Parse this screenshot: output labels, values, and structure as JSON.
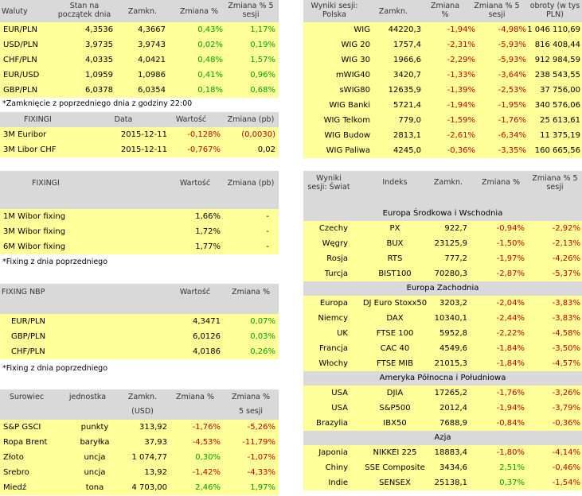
{
  "currency": {
    "headers": [
      "Waluty",
      "Stan na początek dnia",
      "Zamkn.",
      "Zmiana %",
      "Zmiana % 5 sesji"
    ],
    "rows": [
      [
        "EUR/PLN",
        "4,3536",
        "4,3667",
        "0,43%",
        "1,17%"
      ],
      [
        "USD/PLN",
        "3,9735",
        "3,9743",
        "0,02%",
        "0,19%"
      ],
      [
        "CHF/PLN",
        "4,0335",
        "4,0421",
        "0,48%",
        "1,57%"
      ],
      [
        "EUR/USD",
        "1,0959",
        "1,0986",
        "0,41%",
        "0,96%"
      ],
      [
        "GBP/PLN",
        "6,0378",
        "6,0354",
        "0,18%",
        "0,68%"
      ]
    ],
    "note": "*Zamknięcie z poprzedniego dnia z godziny 22:00"
  },
  "fixing1": {
    "headers": [
      "FIXINGI",
      "Data",
      "Wartość",
      "Zmiana (pb)"
    ],
    "rows": [
      [
        "3M Euribor",
        "2015-12-11",
        "-0,128%",
        "(0,0030)"
      ],
      [
        "3M Libor CHF",
        "2015-12-11",
        "-0,767%",
        "0,02"
      ]
    ]
  },
  "fixing2": {
    "headers": [
      "FIXINGI",
      "Wartość",
      "Zmiana (pb)"
    ],
    "rows": [
      [
        "1M Wibor fixing",
        "1,66%",
        "-"
      ],
      [
        "3M Wibor fixing",
        "1,72%",
        "-"
      ],
      [
        "6M Wibor fixing",
        "1,77%",
        "-"
      ]
    ],
    "note": "*Fixing z dnia poprzedniego"
  },
  "nbp": {
    "headers": [
      "FIXING NBP",
      "Wartość",
      "Zmiana %"
    ],
    "rows": [
      [
        "EUR/PLN",
        "4,3471",
        "0,07%"
      ],
      [
        "GBP/PLN",
        "6,0126",
        "0,03%"
      ],
      [
        "CHF/PLN",
        "4,0186",
        "0,26%"
      ]
    ],
    "note": "*Fixing z dnia poprzedniego"
  },
  "commodities": {
    "headers": [
      "Surowiec",
      "jednostka",
      "Zamkn.",
      "Zmiana %",
      "Zmiana %"
    ],
    "subheaders": [
      "(USD)",
      "5 sesji"
    ],
    "rows": [
      [
        "S&P GSCI",
        "punkty",
        "313,92",
        "-1,76%",
        "-5,26%"
      ],
      [
        "Ropa Brent",
        "baryłka",
        "37,93",
        "-4,53%",
        "-11,79%"
      ],
      [
        "Złoto",
        "uncja",
        "1 074,77",
        "0,30%",
        "-1,07%"
      ],
      [
        "Srebro",
        "uncja",
        "13,92",
        "-1,42%",
        "-4,33%"
      ],
      [
        "Miedź",
        "tona",
        "4 703,00",
        "2,46%",
        "1,97%"
      ]
    ]
  },
  "poland": {
    "headers": [
      "Wyniki sesji: Polska",
      "Zamkn.",
      "Zmiana %",
      "Zmiana % 5 sesji",
      "obroty (w tys PLN)"
    ],
    "rows": [
      [
        "WIG",
        "44220,3",
        "-1,94%",
        "-4,98%",
        "1 046 110,69"
      ],
      [
        "WIG 20",
        "1757,4",
        "-2,31%",
        "-5,93%",
        "816 408,44"
      ],
      [
        "WIG 30",
        "1966,6",
        "-2,29%",
        "-5,93%",
        "912 984,59"
      ],
      [
        "mWIG40",
        "3420,7",
        "-1,33%",
        "-3,64%",
        "238 543,55"
      ],
      [
        "sWIG80",
        "12635,9",
        "-1,39%",
        "-2,53%",
        "37 756,00"
      ],
      [
        "WIG Banki",
        "5721,4",
        "-1,94%",
        "-1,95%",
        "340 576,06"
      ],
      [
        "WIG Telkom",
        "779,0",
        "-1,59%",
        "-1,76%",
        "25 613,61"
      ],
      [
        "WIG Budow",
        "2813,1",
        "-2,61%",
        "-6,34%",
        "11 375,19"
      ],
      [
        "WIG Paliwa",
        "4245,0",
        "-0,36%",
        "-3,35%",
        "160 665,56"
      ]
    ]
  },
  "world": {
    "headers": [
      "Wyniki sesji: Świat",
      "Indeks",
      "Zamkn.",
      "Zmiana %",
      "Zmiana % 5 sesji"
    ],
    "groups": [
      {
        "name": "Europa Środkowa i Wschodnia",
        "rows": [
          [
            "Czechy",
            "PX",
            "922,7",
            "-0,94%",
            "-2,92%"
          ],
          [
            "Węgry",
            "BUX",
            "23125,9",
            "-1,50%",
            "-2,13%"
          ],
          [
            "Rosja",
            "RTS",
            "777,2",
            "-1,97%",
            "-4,26%"
          ],
          [
            "Turcja",
            "BIST100",
            "70280,3",
            "-2,87%",
            "-5,37%"
          ]
        ]
      },
      {
        "name": "Europa Zachodnia",
        "rows": [
          [
            "Europa",
            "DJ Euro Stoxx50",
            "3203,2",
            "-2,04%",
            "-3,83%"
          ],
          [
            "Niemcy",
            "DAX",
            "10340,1",
            "-2,44%",
            "-3,83%"
          ],
          [
            "UK",
            "FTSE 100",
            "5952,8",
            "-2,22%",
            "-4,58%"
          ],
          [
            "Francja",
            "CAC 40",
            "4549,6",
            "-1,84%",
            "-3,50%"
          ],
          [
            "Włochy",
            "FTSE MIB",
            "21015,3",
            "-1,84%",
            "-4,57%"
          ]
        ]
      },
      {
        "name": "Ameryka Północna i Południowa",
        "rows": [
          [
            "USA",
            "DJIA",
            "17265,2",
            "-1,76%",
            "-3,26%"
          ],
          [
            "USA",
            "S&P500",
            "2012,4",
            "-1,94%",
            "-3,79%"
          ],
          [
            "Brazylia",
            "IBX50",
            "7688,9",
            "-0,84%",
            "-0,36%"
          ]
        ]
      },
      {
        "name": "Azja",
        "rows": [
          [
            "Japonia",
            "NIKKEI 225",
            "18883,4",
            "-1,80%",
            "-4,14%"
          ],
          [
            "Chiny",
            "SSE Composite",
            "3434,6",
            "2,51%",
            "-0,46%"
          ],
          [
            "Indie",
            "SENSEX",
            "25138,1",
            "0,37%",
            "-1,54%"
          ]
        ]
      }
    ]
  },
  "colors": {
    "header": "#d9d9d9",
    "row": "#ffff99",
    "negative": "#c00000",
    "positive": "#00a000"
  }
}
